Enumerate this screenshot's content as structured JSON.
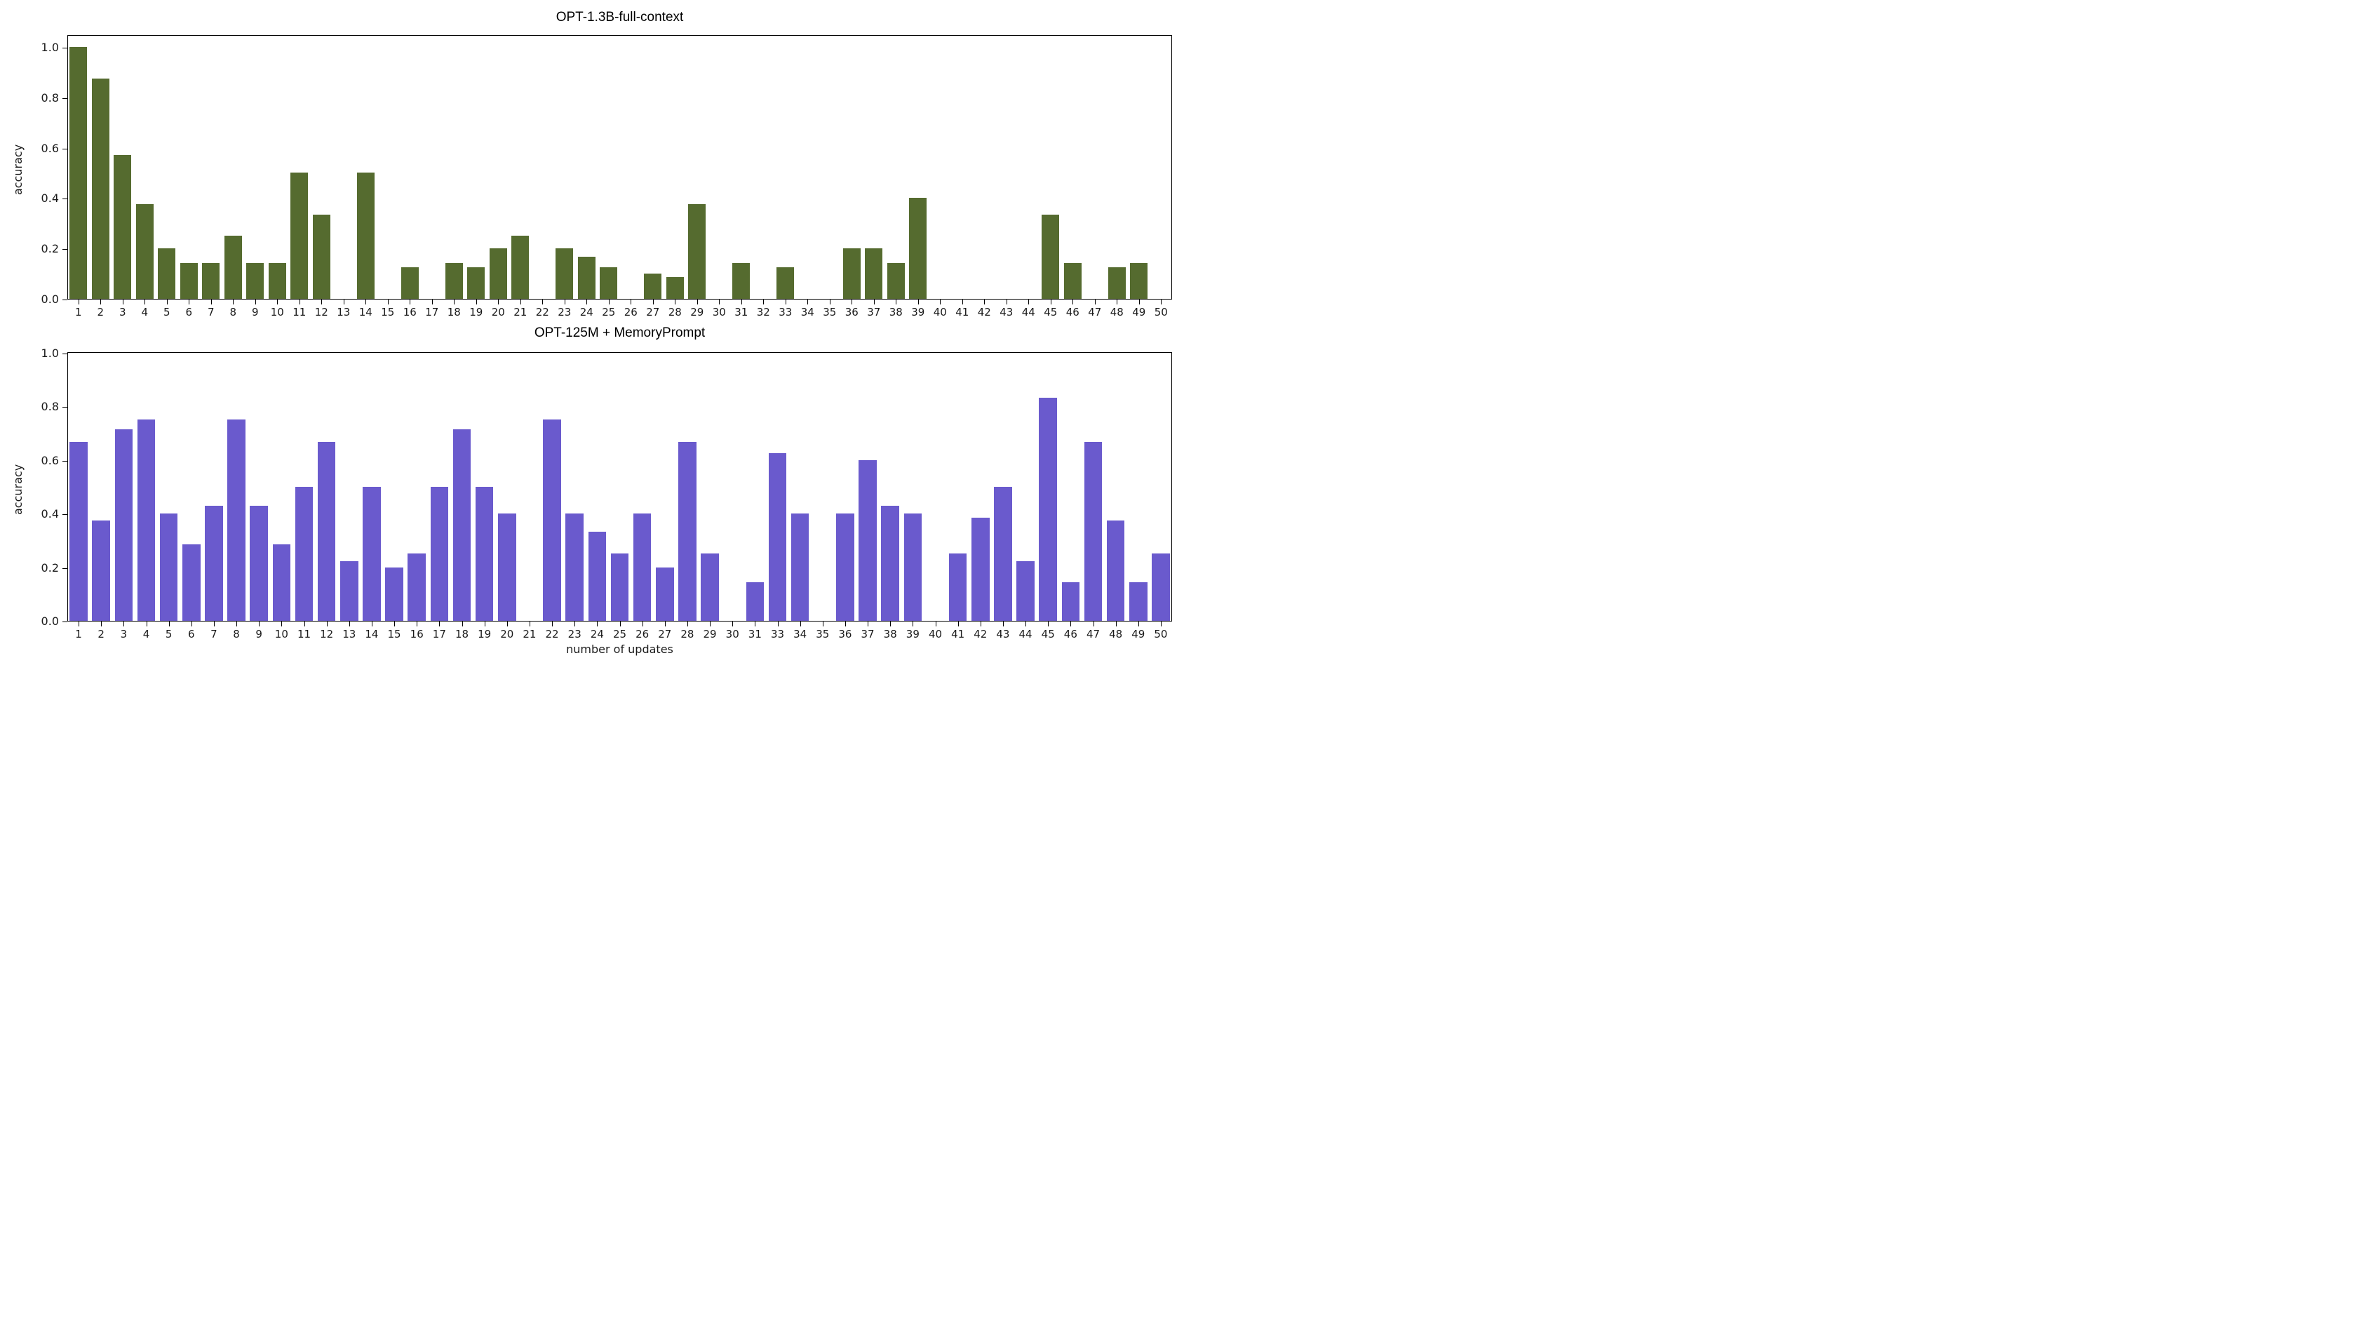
{
  "figure": {
    "background": "#ffffff",
    "axis_color": "#000000",
    "tick_label_color": "#1a1a1a"
  },
  "chart_data": [
    {
      "type": "bar",
      "title": "OPT-1.3B-full-context",
      "xlabel": "",
      "ylabel": "accuracy",
      "bar_color": "#556B2F",
      "legend": "none",
      "grid": false,
      "ylim": [
        0,
        1.05
      ],
      "yticks": [
        "0.0",
        "0.2",
        "0.4",
        "0.6",
        "0.8",
        "1.0"
      ],
      "categories": [
        1,
        2,
        3,
        4,
        5,
        6,
        7,
        8,
        9,
        10,
        11,
        12,
        13,
        14,
        15,
        16,
        17,
        18,
        19,
        20,
        21,
        22,
        23,
        24,
        25,
        26,
        27,
        28,
        29,
        30,
        31,
        32,
        33,
        34,
        35,
        36,
        37,
        38,
        39,
        40,
        41,
        42,
        43,
        44,
        45,
        46,
        47,
        48,
        49,
        50
      ],
      "values": [
        1.0,
        0.875,
        0.571,
        0.375,
        0.2,
        0.143,
        0.143,
        0.25,
        0.143,
        0.143,
        0.5,
        0.333,
        0,
        0.5,
        0,
        0.125,
        0,
        0.143,
        0.125,
        0.2,
        0.25,
        0,
        0.2,
        0.167,
        0.125,
        0,
        0.1,
        0.086,
        0.375,
        0,
        0.143,
        0,
        0.125,
        0,
        0,
        0.2,
        0.2,
        0.143,
        0.4,
        0,
        0,
        0,
        0,
        0,
        0.333,
        0.143,
        0,
        0.125,
        0.143,
        0
      ]
    },
    {
      "type": "bar",
      "title": "OPT-125M + MemoryPrompt",
      "xlabel": "number of updates",
      "ylabel": "accuracy",
      "bar_color": "#6A5ACD",
      "legend": "none",
      "grid": false,
      "ylim": [
        0,
        1.0
      ],
      "yticks": [
        "0.0",
        "0.2",
        "0.4",
        "0.6",
        "0.8",
        "1.0"
      ],
      "categories": [
        1,
        2,
        3,
        4,
        5,
        6,
        7,
        8,
        9,
        10,
        11,
        12,
        13,
        14,
        15,
        16,
        17,
        18,
        19,
        20,
        21,
        22,
        23,
        24,
        25,
        26,
        27,
        28,
        29,
        30,
        31,
        33,
        34,
        35,
        36,
        37,
        38,
        39,
        40,
        41,
        42,
        43,
        44,
        45,
        46,
        47,
        48,
        49,
        50
      ],
      "values": [
        0.667,
        0.375,
        0.714,
        0.75,
        0.4,
        0.286,
        0.429,
        0.75,
        0.429,
        0.286,
        0.5,
        0.667,
        0.222,
        0.5,
        0.2,
        0.25,
        0.5,
        0.714,
        0.5,
        0.4,
        0,
        0.75,
        0.4,
        0.333,
        0.25,
        0.4,
        0.2,
        0.667,
        0.25,
        0,
        0.143,
        0.625,
        0.4,
        0,
        0.4,
        0.6,
        0.429,
        0.4,
        0,
        0.25,
        0.385,
        0.5,
        0.222,
        0.833,
        0.143,
        0.667,
        0.375,
        0.143,
        0.25
      ]
    }
  ]
}
